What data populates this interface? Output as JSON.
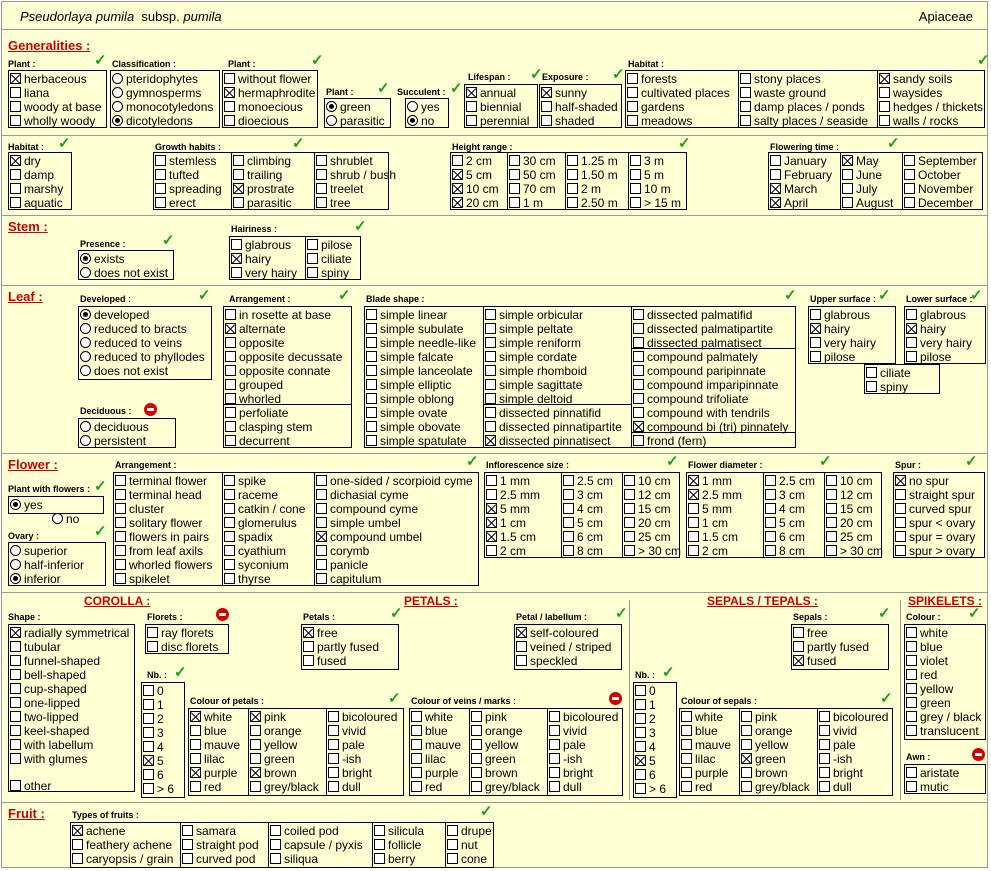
{
  "header": {
    "species": "Pseudorlaya pumila",
    "subsp_prefix": "subsp.",
    "subsp": "pumila",
    "family": "Apiaceae"
  },
  "sections": {
    "generalities": "Generalities :",
    "stem": "Stem :",
    "leaf": "Leaf :",
    "flower": "Flower :",
    "fruit": "Fruit :"
  },
  "subsections": {
    "corolla": "COROLLA :",
    "petals": "PETALS :",
    "sepals": "SEPALS / TEPALS :",
    "spikelets": "SPIKELETS :"
  },
  "groups": {
    "plant1": "Plant :",
    "classification": "Classification :",
    "plant2": "Plant :",
    "plant3": "Plant :",
    "succulent": "Succulent :",
    "lifespan": "Lifespan :",
    "exposure": "Exposure :",
    "habitat1": "Habitat :",
    "habitat2": "Habitat :",
    "growth": "Growth habits :",
    "height": "Height range :",
    "flowering": "Flowering time :",
    "presence": "Presence :",
    "hairiness": "Hairiness :",
    "developed": "Developed :",
    "arrangement_leaf": "Arrangement :",
    "blade": "Blade shape :",
    "upper": "Upper surface :",
    "lower": "Lower surface :",
    "deciduous": "Deciduous :",
    "with_flowers": "Plant with flowers :",
    "ovary": "Ovary :",
    "arrangement_fl": "Arrangement :",
    "infl_size": "Inflorescence size :",
    "fl_diam": "Flower diameter :",
    "spur": "Spur :",
    "shape": "Shape :",
    "florets": "Florets :",
    "nb1": "Nb. :",
    "petals_g": "Petals :",
    "petal_labellum": "Petal / labellum :",
    "col_petals": "Colour of petals :",
    "col_veins": "Colour of veins / marks :",
    "nb2": "Nb. :",
    "sepals_g": "Sepals :",
    "col_sepals": "Colour of sepals :",
    "colour": "Colour :",
    "awn": "Awn :",
    "fruits": "Types of fruits :"
  },
  "opts": {
    "plant1": [
      "herbaceous",
      "liana",
      "woody at base",
      "wholly woody"
    ],
    "classification": [
      "pteridophytes",
      "gymnosperms",
      "monocotyledons",
      "dicotyledons"
    ],
    "plant2": [
      "without flower",
      "hermaphrodite",
      "monoecious",
      "dioecious"
    ],
    "plant3": [
      "green",
      "parasitic"
    ],
    "succulent": [
      "yes",
      "no"
    ],
    "lifespan": [
      "annual",
      "biennial",
      "perennial"
    ],
    "exposure": [
      "sunny",
      "half-shaded",
      "shaded"
    ],
    "habitat1a": [
      "forests",
      "cultivated places",
      "gardens",
      "meadows"
    ],
    "habitat1b": [
      "stony places",
      "waste ground",
      "damp places / ponds",
      "salty places / seaside"
    ],
    "habitat1c": [
      "sandy soils",
      "waysides",
      "hedges / thickets",
      "walls / rocks"
    ],
    "habitat2": [
      "dry",
      "damp",
      "marshy",
      "aquatic"
    ],
    "growth_a": [
      "stemless",
      "tufted",
      "spreading",
      "erect"
    ],
    "growth_b": [
      "climbing",
      "trailing",
      "prostrate",
      "parasitic"
    ],
    "growth_c": [
      "shrublet",
      "shrub / bush",
      "treelet",
      "tree"
    ],
    "height_a": [
      "2 cm",
      "5 cm",
      "10 cm",
      "20 cm"
    ],
    "height_b": [
      "30 cm",
      "50 cm",
      "70 cm",
      "1 m"
    ],
    "height_c": [
      "1.25 m",
      "1.50 m",
      "2 m",
      "2.50 m"
    ],
    "height_d": [
      "3 m",
      "5 m",
      "10 m",
      "> 15 m"
    ],
    "flow_a": [
      "January",
      "February",
      "March",
      "April"
    ],
    "flow_b": [
      "May",
      "June",
      "July",
      "August"
    ],
    "flow_c": [
      "September",
      "October",
      "November",
      "December"
    ],
    "presence": [
      "exists",
      "does not exist"
    ],
    "hair_a": [
      "glabrous",
      "hairy",
      "very hairy"
    ],
    "hair_b": [
      "pilose",
      "ciliate",
      "spiny"
    ],
    "developed": [
      "developed",
      "reduced to bracts",
      "reduced to veins",
      "reduced to phyllodes",
      "does not exist"
    ],
    "arr_leaf": [
      "in rosette at base",
      "alternate",
      "opposite",
      "opposite decussate",
      "opposite connate",
      "grouped",
      "whorled"
    ],
    "arr_leaf2": [
      "perfoliate",
      "clasping stem",
      "decurrent"
    ],
    "blade_a": [
      "simple linear",
      "simple subulate",
      "simple needle-like",
      "simple falcate",
      "simple lanceolate",
      "simple elliptic",
      "simple oblong",
      "simple ovate",
      "simple obovate",
      "simple spatulate"
    ],
    "blade_b": [
      "simple orbicular",
      "simple peltate",
      "simple reniform",
      "simple cordate",
      "simple rhomboid",
      "simple sagittate",
      "simple deltoid"
    ],
    "blade_b2": [
      "dissected pinnatifid",
      "dissected pinnatipartite",
      "dissected pinnatisect"
    ],
    "blade_c": [
      "dissected palmatifid",
      "dissected palmatipartite",
      "dissected palmatisect"
    ],
    "blade_c2": [
      "compound palmately",
      "compound paripinnate",
      "compound imparipinnate",
      "compound trifoliate",
      "compound with tendrils",
      "compound bi (tri) pinnately"
    ],
    "blade_c3": [
      "frond  (fern)"
    ],
    "upper": [
      "glabrous",
      "hairy",
      "very hairy",
      "pilose"
    ],
    "lower": [
      "glabrous",
      "hairy",
      "very hairy",
      "pilose"
    ],
    "surf_extra": [
      "ciliate",
      "spiny"
    ],
    "deciduous": [
      "deciduous",
      "persistent"
    ],
    "with_flowers": [
      "yes",
      "no"
    ],
    "ovary": [
      "superior",
      "half-inferior",
      "inferior"
    ],
    "arr_fl_a": [
      "terminal flower",
      "terminal head",
      "cluster",
      "solitary flower",
      "flowers in pairs",
      "from leaf axils",
      "whorled flowers",
      "spikelet"
    ],
    "arr_fl_b": [
      "spike",
      "raceme",
      "catkin / cone",
      "glomerulus",
      "spadix",
      "cyathium",
      "syconium",
      "thyrse"
    ],
    "arr_fl_c": [
      "one-sided / scorpioid cyme",
      "dichasial cyme",
      "compound cyme",
      "simple umbel",
      "compound umbel",
      "corymb",
      "panicle",
      "capitulum"
    ],
    "infl_a": [
      "1 mm",
      "2.5 mm",
      "5 mm",
      "1 cm",
      "1.5 cm",
      "2 cm"
    ],
    "infl_b": [
      "2.5 cm",
      "3 cm",
      "4 cm",
      "5 cm",
      "6 cm",
      "8 cm"
    ],
    "infl_c": [
      "10 cm",
      "12 cm",
      "15 cm",
      "20 cm",
      "25 cm",
      "> 30 cm"
    ],
    "diam_a": [
      "1 mm",
      "2.5 mm",
      "5 mm",
      "1 cm",
      "1.5 cm",
      "2 cm"
    ],
    "diam_b": [
      "2.5 cm",
      "3 cm",
      "4 cm",
      "5 cm",
      "6 cm",
      "8 cm"
    ],
    "diam_c": [
      "10 cm",
      "12 cm",
      "15 cm",
      "20 cm",
      "25 cm",
      "> 30 cm"
    ],
    "spur": [
      "no spur",
      "straight spur",
      "curved spur",
      "spur < ovary",
      "spur = ovary",
      "spur > ovary"
    ],
    "shape": [
      "radially symmetrical",
      "tubular",
      "funnel-shaped",
      "bell-shaped",
      "cup-shaped",
      "one-lipped",
      "two-lipped",
      "keel-shaped",
      "with labellum",
      "with glumes"
    ],
    "shape_other": [
      "other"
    ],
    "florets": [
      "ray florets",
      "disc florets"
    ],
    "nb": [
      "0",
      "1",
      "2",
      "3",
      "4",
      "5",
      "6",
      "> 6"
    ],
    "petals": [
      "free",
      "partly fused",
      "fused"
    ],
    "petal_lab": [
      "self-coloured",
      "veined / striped",
      "speckled"
    ],
    "col_a": [
      "white",
      "blue",
      "mauve",
      "lilac",
      "purple",
      "red"
    ],
    "col_b": [
      "pink",
      "orange",
      "yellow",
      "green",
      "brown",
      "grey/black"
    ],
    "col_c": [
      "bicoloured",
      "vivid",
      "pale",
      "-ish",
      "bright",
      "dull"
    ],
    "sepals": [
      "free",
      "partly fused",
      "fused"
    ],
    "colour": [
      "white",
      "blue",
      "violet",
      "red",
      "yellow",
      "green",
      "grey / black",
      "translucent"
    ],
    "awn": [
      "aristate",
      "mutic"
    ],
    "fruit_a": [
      "achene",
      "feathery achene",
      "caryopsis / grain"
    ],
    "fruit_b": [
      "samara",
      "straight pod",
      "curved pod"
    ],
    "fruit_c": [
      "coiled pod",
      "capsule / pyxis",
      "siliqua"
    ],
    "fruit_d": [
      "silicula",
      "follicle",
      "berry"
    ],
    "fruit_e": [
      "drupe",
      "nut",
      "cone"
    ]
  },
  "colors": {
    "background": "#ffffd4",
    "section_red": "#cc0000",
    "check_green": "#1aa01a",
    "forbid_red": "#d40000"
  }
}
